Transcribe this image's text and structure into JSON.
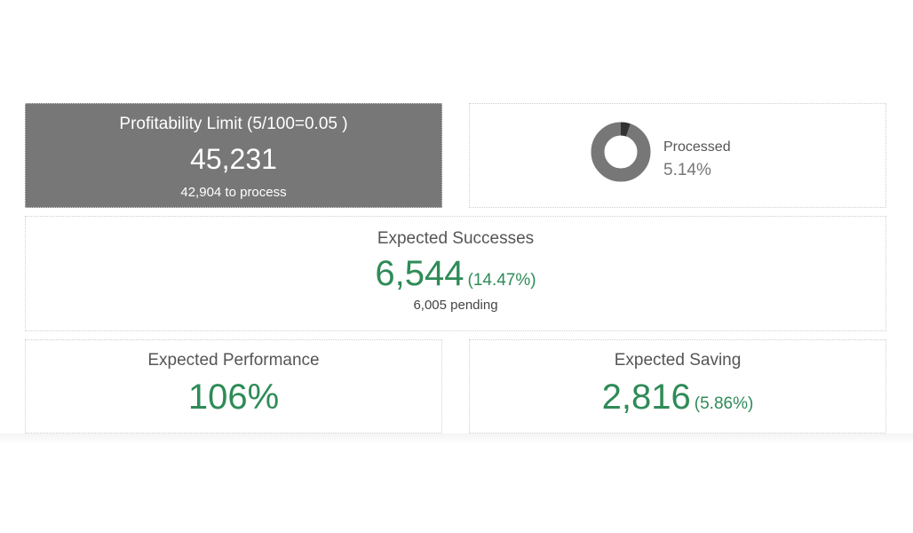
{
  "limit": {
    "title": "Profitability Limit (5/100=0.05 )",
    "value": "45,231",
    "sub": "42,904 to process"
  },
  "processed": {
    "label": "Processed",
    "value": "5.14%",
    "fraction": 0.0514,
    "colors": {
      "ring": "#777777",
      "progress": "#333333"
    }
  },
  "successes": {
    "title": "Expected Successes",
    "value": "6,544",
    "percent": "(14.47%)",
    "pending": "6,005 pending"
  },
  "performance": {
    "title": "Expected Performance",
    "value": "106%"
  },
  "saving": {
    "title": "Expected Saving",
    "value": "2,816",
    "percent": "(5.86%)"
  },
  "colors": {
    "accent_green": "#2e8b57",
    "dark_card": "#777777"
  }
}
